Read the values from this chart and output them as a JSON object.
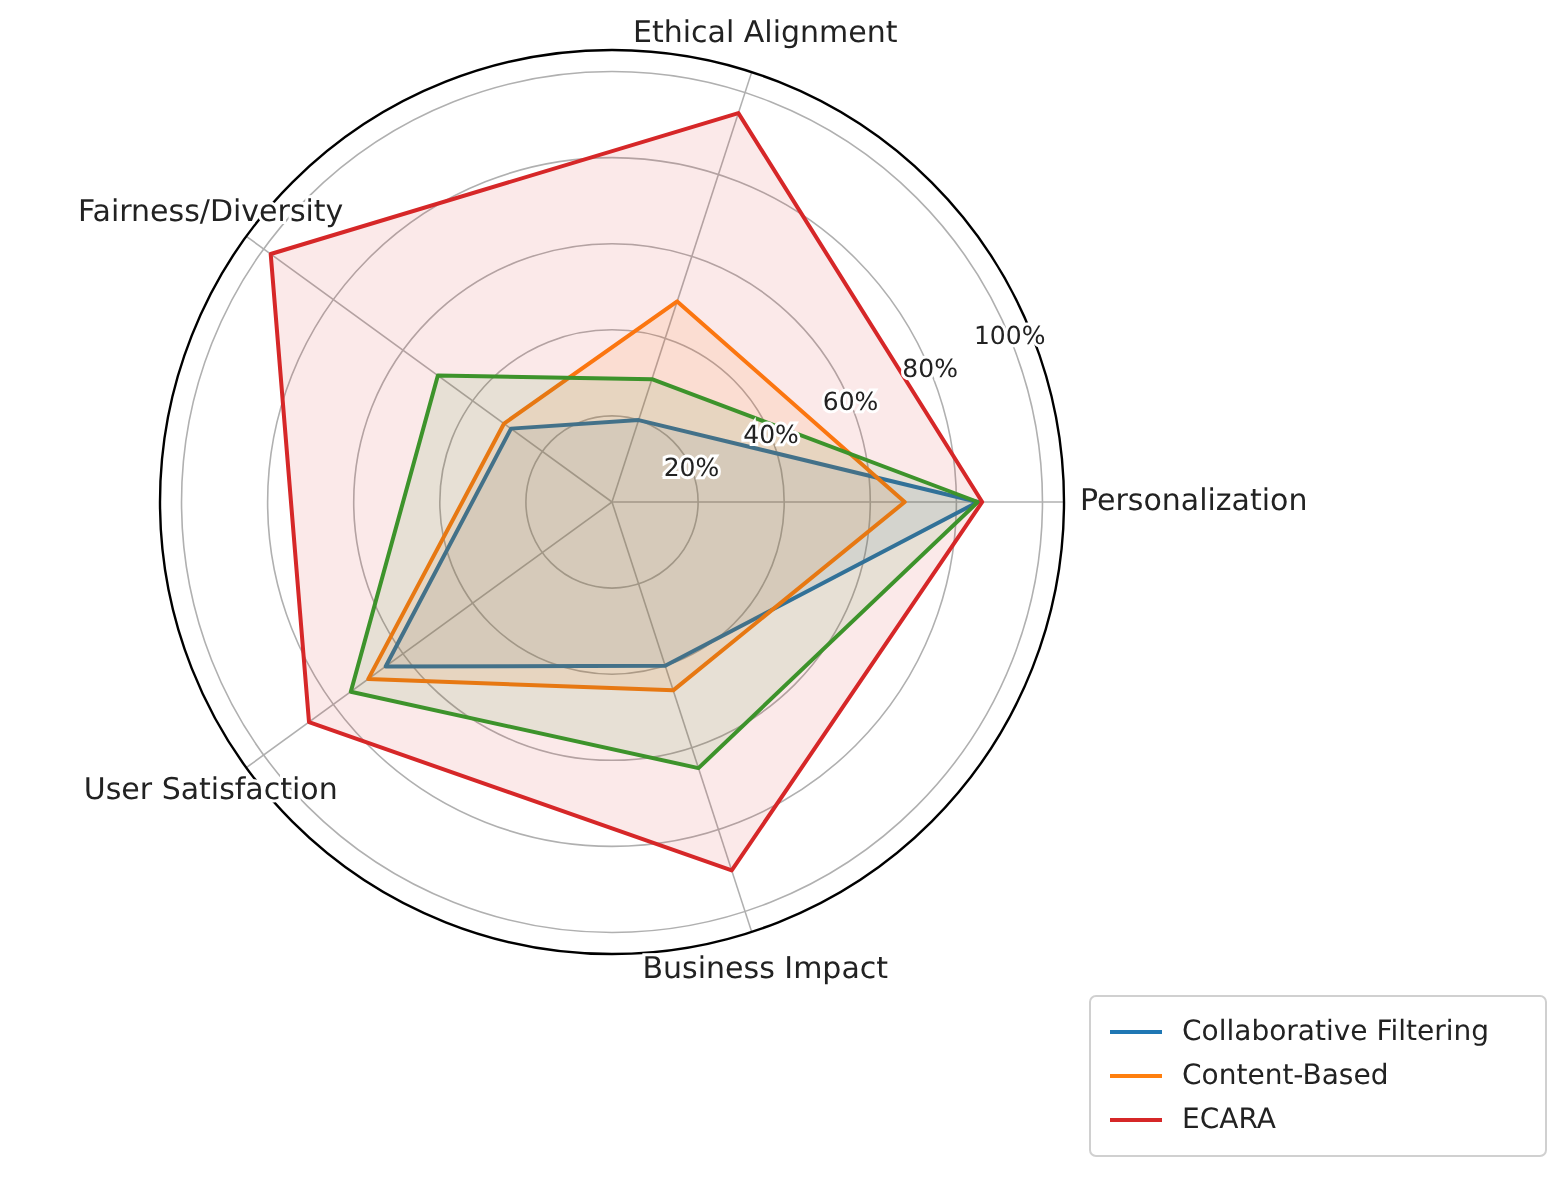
{
  "chart_data": {
    "type": "radar",
    "categories": [
      "Ethical Alignment",
      "Personalization",
      "Business Impact",
      "User Satisfaction",
      "Fairness/Diversity"
    ],
    "series": [
      {
        "name": "Collaborative Filtering",
        "color": "#1f77b4",
        "values": [
          20,
          85,
          40,
          65,
          29
        ]
      },
      {
        "name": "Content-Based",
        "color": "#ff7f0e",
        "values": [
          49,
          68,
          46,
          70,
          31
        ]
      },
      {
        "color": "#2ca02c",
        "values": [
          30,
          85,
          65,
          75,
          50
        ]
      },
      {
        "name": "ECARA",
        "color": "#d62728",
        "values": [
          95,
          86,
          90,
          87,
          98
        ]
      }
    ],
    "ylim": [
      0,
      105
    ],
    "yticks": [
      {
        "value": 20,
        "label": "20%"
      },
      {
        "value": 40,
        "label": "40%"
      },
      {
        "value": 60,
        "label": "60%"
      },
      {
        "value": 80,
        "label": "80%"
      },
      {
        "value": 100,
        "label": "100%"
      }
    ],
    "grid": true,
    "legend": "bottom right"
  }
}
